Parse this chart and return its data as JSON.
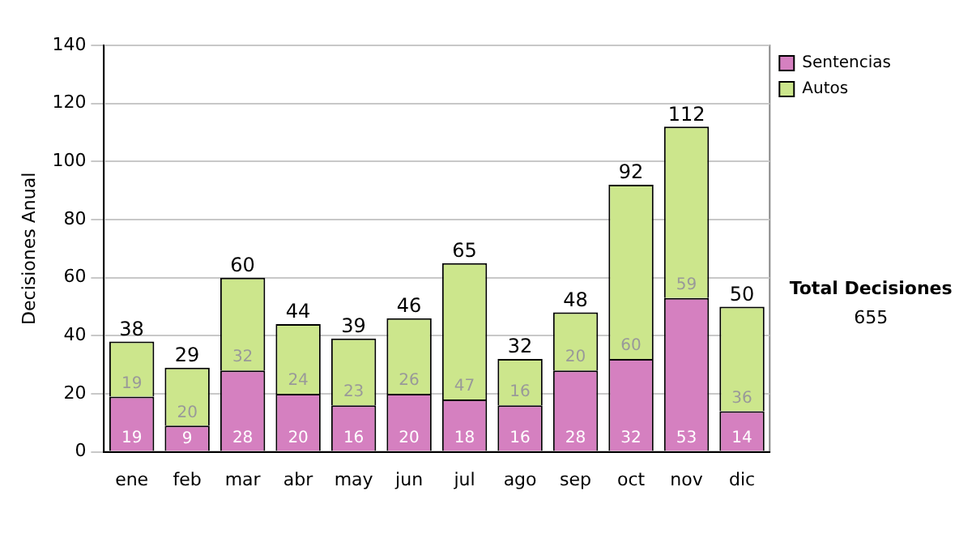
{
  "chart_data": {
    "type": "bar",
    "stacked": true,
    "ylabel": "Decisiones Anual",
    "categories": [
      "ene",
      "feb",
      "mar",
      "abr",
      "may",
      "jun",
      "jul",
      "ago",
      "sep",
      "oct",
      "nov",
      "dic"
    ],
    "series": [
      {
        "name": "Sentencias",
        "color": "#d580c0",
        "values": [
          19,
          9,
          28,
          20,
          16,
          20,
          18,
          16,
          28,
          32,
          53,
          14
        ]
      },
      {
        "name": "Autos",
        "color": "#cce68c",
        "values": [
          19,
          20,
          32,
          24,
          23,
          26,
          47,
          16,
          20,
          60,
          59,
          36
        ]
      }
    ],
    "ylim": [
      0,
      140
    ],
    "yticks": [
      0,
      20,
      40,
      60,
      80,
      100,
      120,
      140
    ],
    "grid": "y",
    "legend": "right",
    "data_labels": true,
    "totals": [
      "38",
      "29",
      "60",
      "44",
      "39",
      "46",
      "65",
      "32",
      "48",
      "92",
      "112",
      "50"
    ],
    "annotations": [
      "Total Decisiones",
      "655"
    ]
  }
}
